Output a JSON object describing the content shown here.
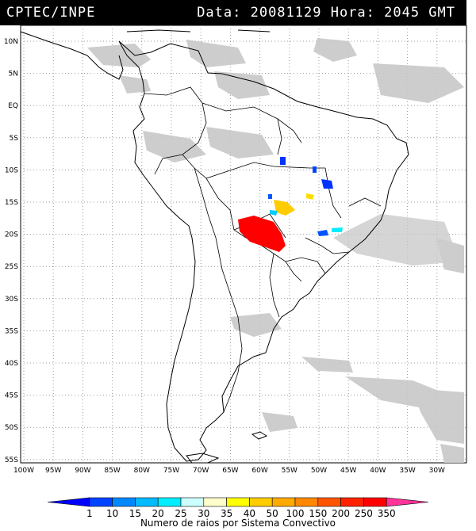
{
  "header": {
    "source": "CPTEC/INPE",
    "datetime": "Data: 20081129 Hora: 2045 GMT"
  },
  "map": {
    "lat_labels": [
      "10N",
      "5N",
      "EQ",
      "5S",
      "10S",
      "15S",
      "20S",
      "25S",
      "30S",
      "35S",
      "40S",
      "45S",
      "50S",
      "55S"
    ],
    "lon_labels": [
      "100W",
      "95W",
      "90W",
      "85W",
      "80W",
      "75W",
      "70W",
      "65W",
      "60W",
      "55W",
      "50W",
      "45W",
      "40W",
      "35W",
      "30W"
    ]
  },
  "legend": {
    "title": "Numero de raios por Sistema Convectivo",
    "ticks": [
      "1",
      "10",
      "15",
      "20",
      "25",
      "30",
      "35",
      "40",
      "50",
      "100",
      "150",
      "200",
      "250",
      "350"
    ],
    "colors": [
      "#0000ff",
      "#0044ff",
      "#0088ff",
      "#00bbff",
      "#00eeff",
      "#ccffff",
      "#ffffcc",
      "#ffff00",
      "#ffcc00",
      "#ffaa00",
      "#ff8800",
      "#ff5500",
      "#ff2200",
      "#ff0000",
      "#ff3399"
    ]
  },
  "colors": {
    "cloud": "#c8c8c8",
    "background": "#ffffff",
    "border": "#000000"
  }
}
